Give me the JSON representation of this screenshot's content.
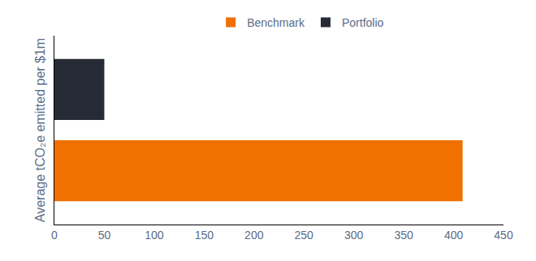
{
  "chart_data": {
    "type": "bar",
    "orientation": "horizontal",
    "ylabel": "Average tCO₂e emitted per $1m",
    "categories": [
      null
    ],
    "series": [
      {
        "name": "Benchmark",
        "color": "#f07000",
        "values": [
          409
        ]
      },
      {
        "name": "Portfolio",
        "color": "#262b36",
        "values": [
          50
        ]
      }
    ],
    "xlim": [
      0,
      450
    ],
    "xticks": [
      0,
      50,
      100,
      150,
      200,
      250,
      300,
      350,
      400,
      450
    ],
    "grid": false,
    "legend": "top",
    "tick_labels": "x"
  }
}
